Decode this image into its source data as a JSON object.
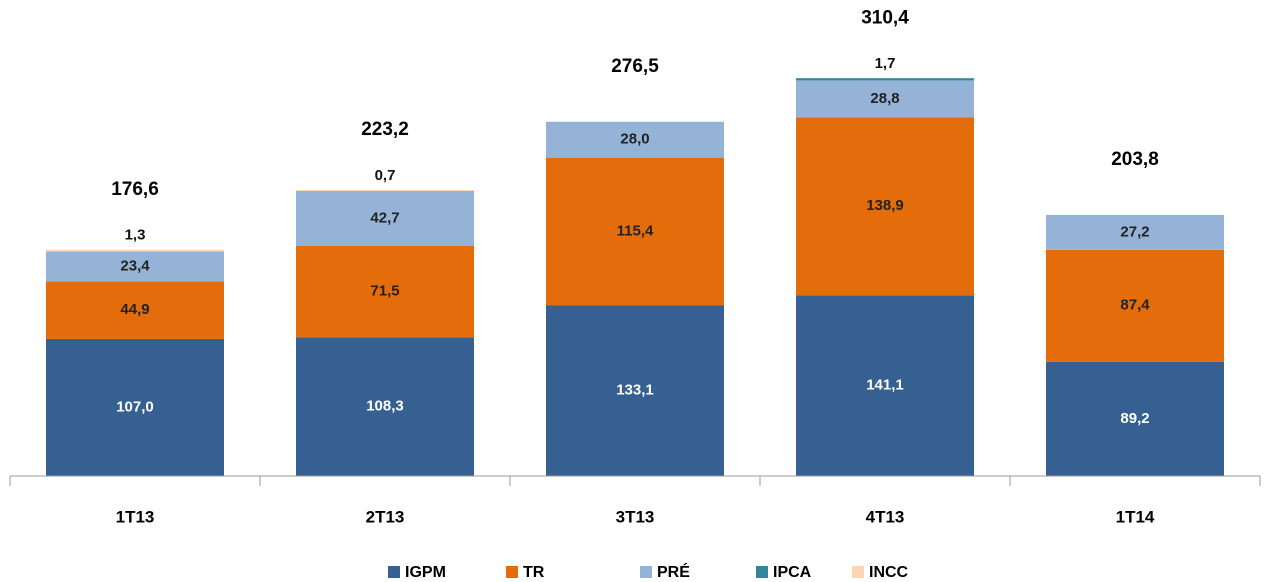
{
  "chart_data": {
    "type": "stacked_bar",
    "categories": [
      "1T13",
      "2T13",
      "3T13",
      "4T13",
      "1T14"
    ],
    "series": [
      {
        "name": "IGPM",
        "color": "#376092",
        "values": [
          107.0,
          108.3,
          133.1,
          141.1,
          89.2
        ],
        "value_labels": [
          "107,0",
          "108,3",
          "133,1",
          "141,1",
          "89,2"
        ]
      },
      {
        "name": "TR",
        "color": "#e46c0a",
        "values": [
          44.9,
          71.5,
          115.4,
          138.9,
          87.4
        ],
        "value_labels": [
          "44,9",
          "71,5",
          "115,4",
          "138,9",
          "87,4"
        ]
      },
      {
        "name": "PRÉ",
        "color": "#95b3d7",
        "values": [
          23.4,
          42.7,
          28.0,
          28.8,
          27.2
        ],
        "value_labels": [
          "23,4",
          "42,7",
          "28,0",
          "28,8",
          "27,2"
        ]
      },
      {
        "name": "IPCA",
        "color": "#31859c",
        "values": [
          null,
          null,
          null,
          1.7,
          null
        ],
        "value_labels": [
          null,
          null,
          null,
          "1,7",
          null
        ]
      },
      {
        "name": "INCC",
        "color": "#fcd5b4",
        "values": [
          1.3,
          0.7,
          null,
          null,
          null
        ],
        "value_labels": [
          "1,3",
          "0,7",
          null,
          null,
          null
        ]
      }
    ],
    "totals": [
      176.6,
      223.2,
      276.5,
      310.4,
      203.8
    ],
    "total_labels": [
      "176,6",
      "223,2",
      "276,5",
      "310,4",
      "203,8"
    ],
    "ylim": [
      0,
      370
    ],
    "legend": "bottom"
  }
}
